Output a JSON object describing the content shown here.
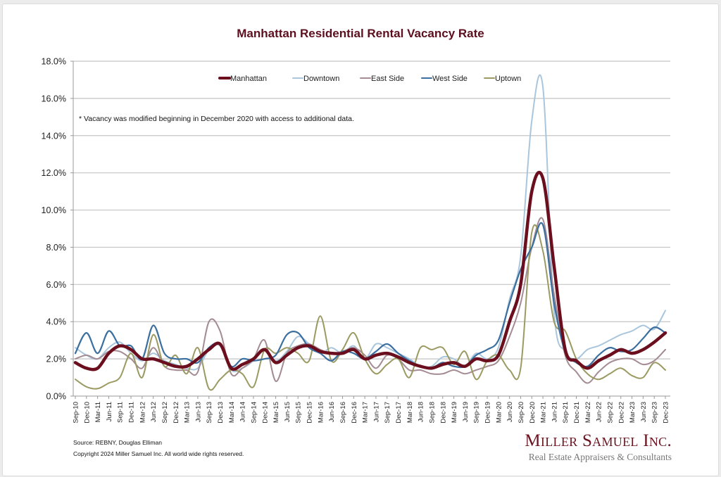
{
  "chart_data": {
    "type": "line",
    "title": "Manhattan Residential Rental Vacancy Rate",
    "xlabel": "",
    "ylabel": "",
    "ylim": [
      0,
      18
    ],
    "y_ticks": [
      "0.0%",
      "2.0%",
      "4.0%",
      "6.0%",
      "8.0%",
      "10.0%",
      "12.0%",
      "14.0%",
      "16.0%",
      "18.0%"
    ],
    "grid": true,
    "legend_position": "top-center",
    "x": [
      "Sep-10",
      "Dec-10",
      "Mar-11",
      "Jun-11",
      "Sep-11",
      "Dec-11",
      "Mar-12",
      "Jun-12",
      "Sep-12",
      "Dec-12",
      "Mar-13",
      "Jun-13",
      "Sep-13",
      "Dec-13",
      "Mar-14",
      "Jun-14",
      "Sep-14",
      "Dec-14",
      "Mar-15",
      "Jun-15",
      "Sep-15",
      "Dec-15",
      "Mar-16",
      "Jun-16",
      "Sep-16",
      "Dec-16",
      "Mar-17",
      "Jun-17",
      "Sep-17",
      "Dec-17",
      "Mar-18",
      "Jun-18",
      "Sep-18",
      "Dec-18",
      "Mar-19",
      "Jun-19",
      "Sep-19",
      "Dec-19",
      "Mar-20",
      "Jun-20",
      "Sep-20",
      "Dec-20",
      "Mar-21",
      "Jun-21",
      "Sep-21",
      "Dec-21",
      "Mar-22",
      "Jun-22",
      "Sep-22",
      "Dec-22",
      "Mar-23",
      "Jun-23",
      "Sep-23",
      "Dec-23"
    ],
    "series": [
      {
        "name": "Manhattan",
        "color": "#6b0f1f",
        "width": 4.5,
        "values": [
          1.8,
          1.5,
          1.5,
          2.3,
          2.7,
          2.5,
          2.0,
          2.0,
          1.8,
          1.6,
          1.6,
          2.0,
          2.5,
          2.8,
          1.5,
          1.7,
          2.0,
          2.5,
          1.8,
          2.2,
          2.6,
          2.7,
          2.4,
          2.3,
          2.3,
          2.5,
          2.0,
          2.2,
          2.3,
          2.1,
          1.8,
          1.6,
          1.5,
          1.7,
          1.8,
          1.6,
          2.0,
          1.9,
          2.2,
          4.0,
          6.0,
          11.0,
          11.7,
          7.0,
          2.5,
          1.9,
          1.5,
          1.9,
          2.2,
          2.5,
          2.3,
          2.5,
          2.9,
          3.4
        ]
      },
      {
        "name": "Downtown",
        "color": "#a9c6dc",
        "width": 2,
        "values": [
          2.6,
          2.2,
          2.0,
          2.6,
          2.9,
          2.3,
          1.9,
          2.3,
          1.9,
          1.7,
          1.5,
          1.5,
          2.5,
          2.7,
          1.4,
          1.5,
          1.9,
          2.5,
          1.9,
          2.4,
          3.2,
          2.8,
          2.3,
          2.6,
          2.3,
          2.7,
          2.0,
          2.8,
          2.6,
          2.3,
          2.0,
          1.6,
          1.6,
          2.1,
          2.0,
          1.6,
          2.3,
          2.0,
          2.6,
          5.2,
          7.5,
          14.8,
          16.6,
          4.5,
          2.4,
          2.0,
          2.5,
          2.7,
          3.0,
          3.3,
          3.5,
          3.8,
          3.6,
          4.6
        ]
      },
      {
        "name": "East Side",
        "color": "#a48b94",
        "width": 2,
        "values": [
          2.0,
          2.2,
          2.0,
          2.4,
          2.4,
          2.0,
          1.5,
          2.6,
          1.6,
          1.4,
          1.4,
          1.3,
          4.0,
          3.5,
          1.2,
          1.5,
          2.0,
          3.0,
          0.8,
          2.3,
          2.7,
          2.8,
          2.5,
          2.3,
          2.4,
          2.6,
          2.2,
          1.5,
          2.2,
          2.0,
          1.4,
          1.4,
          1.2,
          1.2,
          1.4,
          1.2,
          1.4,
          1.6,
          1.9,
          3.2,
          5.0,
          8.0,
          9.5,
          5.5,
          2.2,
          1.3,
          0.7,
          1.3,
          1.8,
          2.0,
          2.0,
          1.7,
          1.9,
          2.5
        ]
      },
      {
        "name": "West Side",
        "color": "#3a6fa0",
        "width": 2.2,
        "values": [
          2.3,
          3.4,
          2.3,
          3.5,
          2.7,
          2.7,
          2.0,
          3.8,
          2.3,
          2.0,
          2.0,
          1.8,
          2.6,
          2.8,
          1.6,
          2.0,
          1.9,
          2.0,
          2.2,
          3.3,
          3.4,
          2.6,
          2.3,
          1.9,
          2.4,
          2.3,
          2.0,
          2.4,
          2.8,
          2.3,
          1.9,
          1.6,
          1.5,
          1.8,
          1.6,
          1.6,
          2.2,
          2.5,
          3.0,
          5.0,
          6.8,
          8.0,
          9.2,
          5.0,
          2.4,
          1.8,
          1.6,
          2.2,
          2.6,
          2.4,
          2.5,
          3.1,
          3.7,
          3.4
        ]
      },
      {
        "name": "Uptown",
        "color": "#9b9a62",
        "width": 2,
        "values": [
          0.9,
          0.5,
          0.4,
          0.7,
          1.0,
          2.3,
          1.0,
          3.3,
          1.6,
          2.2,
          1.2,
          2.6,
          0.4,
          0.9,
          1.4,
          1.2,
          0.5,
          2.5,
          2.3,
          2.6,
          2.3,
          1.9,
          4.3,
          1.9,
          2.5,
          3.4,
          2.0,
          1.2,
          1.7,
          2.0,
          1.0,
          2.6,
          2.5,
          2.6,
          1.7,
          2.4,
          0.9,
          1.9,
          2.2,
          1.4,
          1.5,
          8.8,
          7.8,
          4.0,
          3.5,
          2.0,
          1.2,
          0.9,
          1.2,
          1.5,
          1.1,
          1.0,
          1.8,
          1.4
        ]
      }
    ],
    "annotation": "* Vacancy was modified beginning in December 2020 with access to additional data."
  },
  "footer": {
    "source": "Source: REBNY, Douglas Elliman",
    "copyright": "Copyright 2024 Miller Samuel Inc.  All world wide rights reserved."
  },
  "brand": {
    "name": "Miller Samuel Inc.",
    "tagline": "Real Estate Appraisers & Consultants"
  }
}
